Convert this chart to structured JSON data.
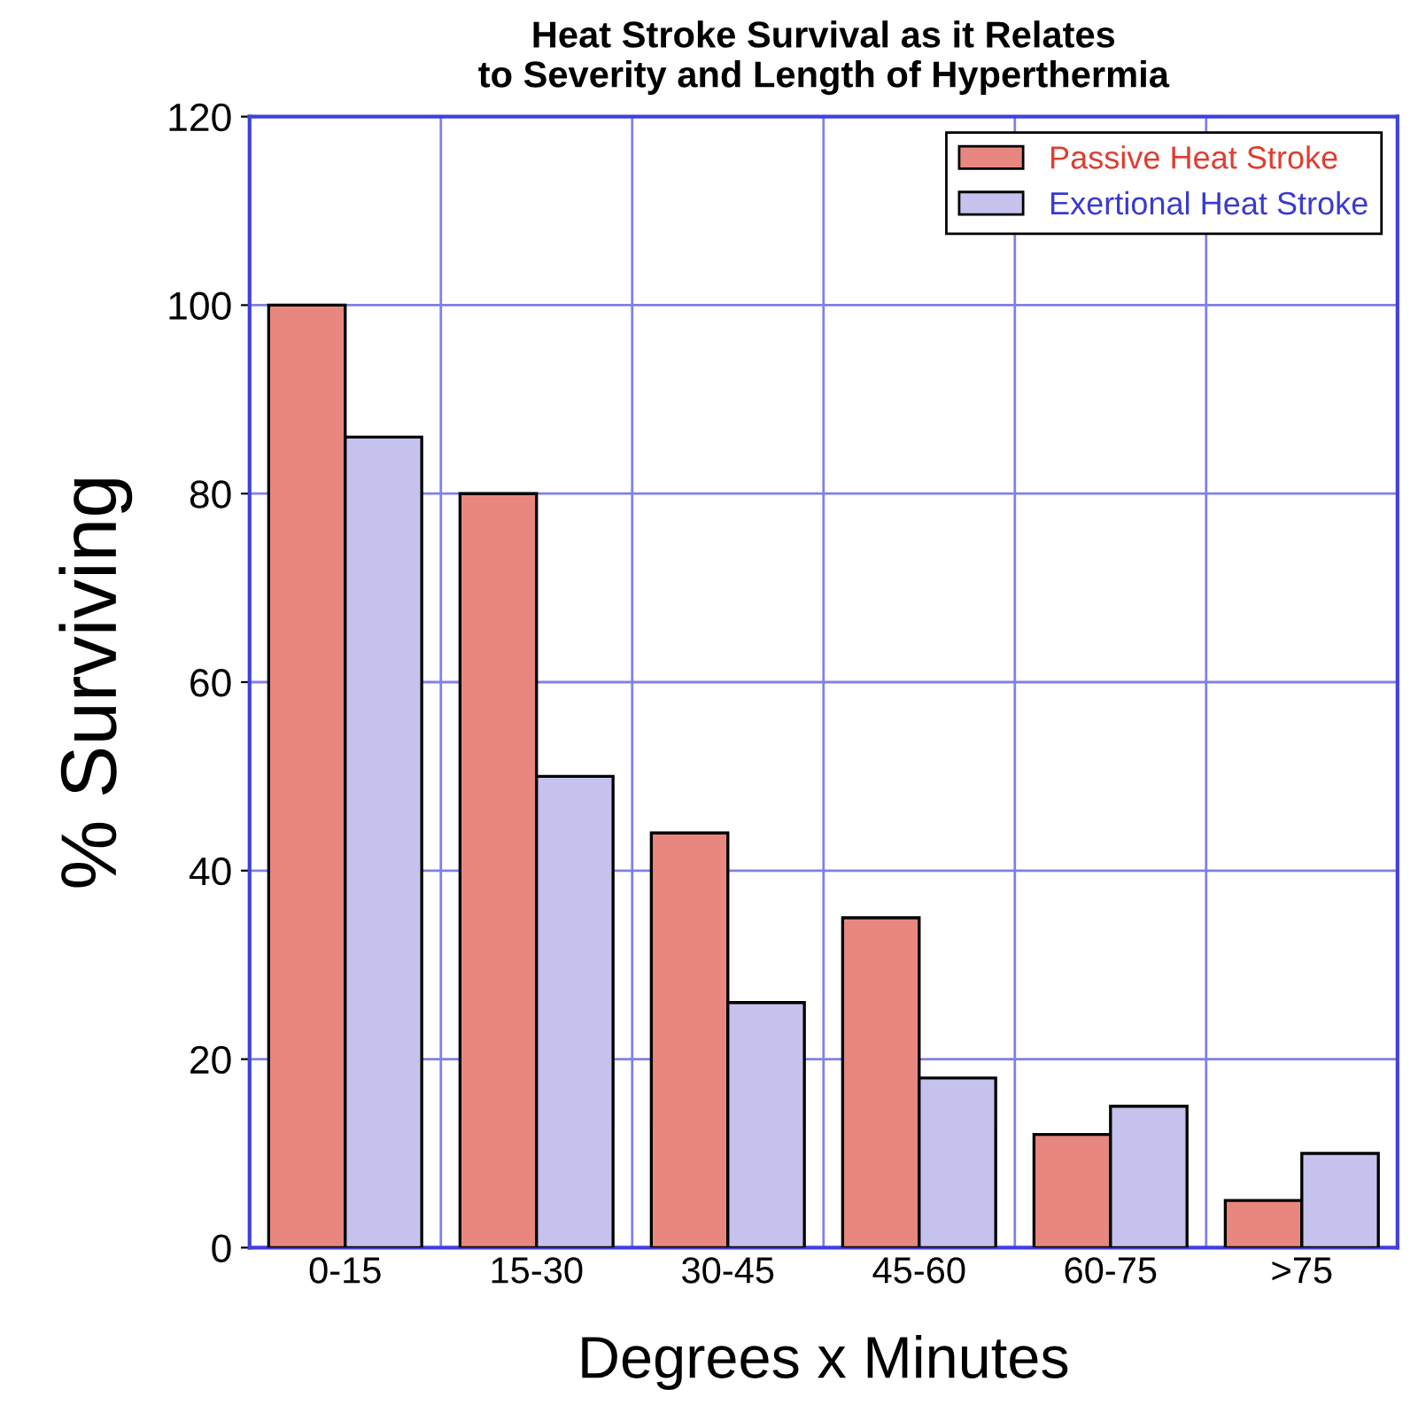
{
  "chart_data": {
    "type": "bar",
    "title": "Heat Stroke Survival as it Relates\nto Severity and Length of Hyperthermia",
    "xlabel": "Degrees x Minutes",
    "ylabel": "% Surviving",
    "categories": [
      "0-15",
      "15-30",
      "30-45",
      "45-60",
      "60-75",
      ">75"
    ],
    "series": [
      {
        "name": "Passive Heat Stroke",
        "color": "#e8877f",
        "values": [
          100,
          80,
          44,
          35,
          12,
          5
        ]
      },
      {
        "name": "Exertional Heat Stroke",
        "color": "#c5c2ee",
        "values": [
          86,
          50,
          26,
          18,
          15,
          10
        ]
      }
    ],
    "ylim": [
      0,
      120
    ],
    "yticks": [
      0,
      20,
      40,
      60,
      80,
      100,
      120
    ],
    "grid": true,
    "legend": "top right"
  }
}
